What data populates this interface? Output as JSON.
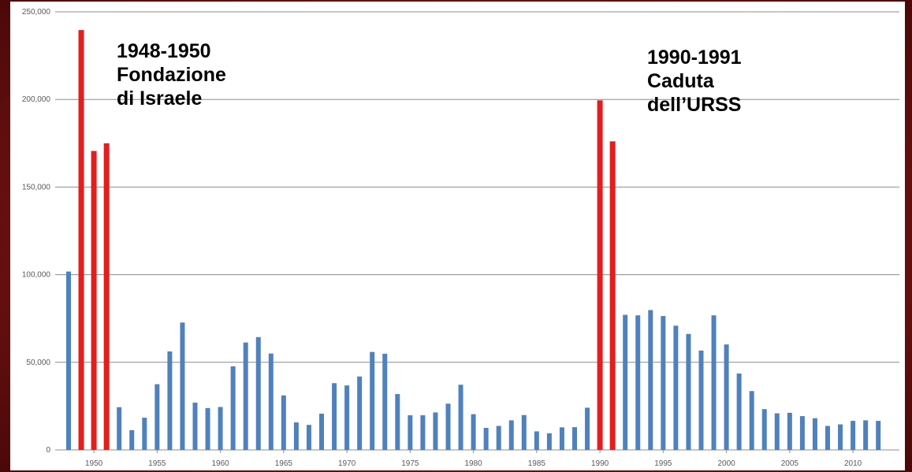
{
  "chart_data": {
    "type": "bar",
    "x": [
      1948,
      1949,
      1950,
      1951,
      1952,
      1953,
      1954,
      1955,
      1956,
      1957,
      1958,
      1959,
      1960,
      1961,
      1962,
      1963,
      1964,
      1965,
      1966,
      1967,
      1968,
      1969,
      1970,
      1971,
      1972,
      1973,
      1974,
      1975,
      1976,
      1977,
      1978,
      1979,
      1980,
      1981,
      1982,
      1983,
      1984,
      1985,
      1986,
      1987,
      1988,
      1989,
      1990,
      1991,
      1992,
      1993,
      1994,
      1995,
      1996,
      1997,
      1998,
      1999,
      2000,
      2001,
      2002,
      2003,
      2004,
      2005,
      2006,
      2007,
      2008,
      2009,
      2010,
      2011,
      2012
    ],
    "values": [
      101800,
      239600,
      170600,
      175000,
      24400,
      11300,
      18400,
      37500,
      56200,
      72700,
      27000,
      23900,
      24500,
      47700,
      61300,
      64400,
      55000,
      31100,
      15700,
      14300,
      20700,
      38100,
      36800,
      41900,
      55900,
      54900,
      31900,
      19800,
      19800,
      21400,
      26400,
      37200,
      20400,
      12600,
      13700,
      16900,
      19900,
      10600,
      9500,
      12900,
      13000,
      24100,
      199500,
      176100,
      77100,
      76800,
      79800,
      76400,
      70900,
      66200,
      56700,
      76800,
      60200,
      43600,
      33600,
      23300,
      20900,
      21200,
      19300,
      18100,
      13700,
      14600,
      16600,
      16900,
      16600
    ],
    "highlighted_years": [
      1949,
      1950,
      1951,
      1990,
      1991
    ],
    "colors": {
      "default_bar": "#4f81bd",
      "highlight_bar": "#e31e1e",
      "grid": "#8c8c8c"
    },
    "ylim": [
      0,
      250000
    ],
    "yticks": [
      "0",
      "50,000",
      "100,000",
      "150,000",
      "200,000",
      "250,000"
    ],
    "xticks": [
      "1950",
      "1955",
      "1960",
      "1965",
      "1970",
      "1975",
      "1980",
      "1985",
      "1990",
      "1995",
      "2000",
      "2005",
      "2010"
    ],
    "grid": true,
    "annotations": [
      {
        "id": "israel",
        "text": "1948-1950\nFondazione\ndi Israele"
      },
      {
        "id": "urss",
        "text": "1990-1991\nCaduta\ndell’URSS"
      }
    ]
  }
}
